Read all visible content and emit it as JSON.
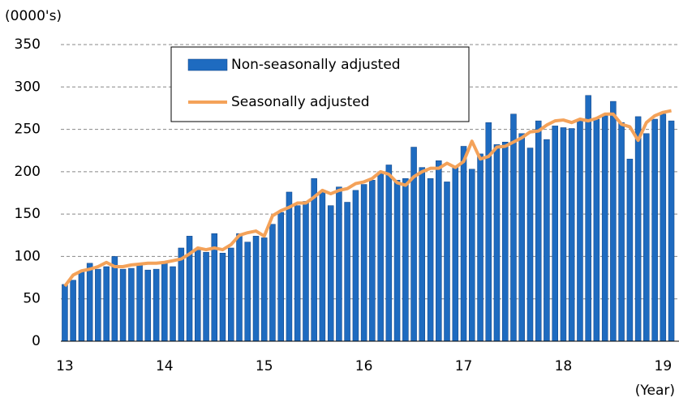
{
  "chart_data": {
    "type": "bar",
    "y_unit_label": "(0000's)",
    "x_unit_label": "(Year)",
    "x": [
      13,
      13.083,
      13.167,
      13.25,
      13.333,
      13.417,
      13.5,
      13.583,
      13.667,
      13.75,
      13.833,
      13.917,
      14,
      14.083,
      14.167,
      14.25,
      14.333,
      14.417,
      14.5,
      14.583,
      14.667,
      14.75,
      14.833,
      14.917,
      15,
      15.083,
      15.167,
      15.25,
      15.333,
      15.417,
      15.5,
      15.583,
      15.667,
      15.75,
      15.833,
      15.917,
      16,
      16.083,
      16.167,
      16.25,
      16.333,
      16.417,
      16.5,
      16.583,
      16.667,
      16.75,
      16.833,
      16.917,
      17,
      17.083,
      17.167,
      17.25,
      17.333,
      17.417,
      17.5,
      17.583,
      17.667,
      17.75,
      17.833,
      17.917,
      18,
      18.083,
      18.167,
      18.25,
      18.333,
      18.417,
      18.5,
      18.583,
      18.667,
      18.75,
      18.833,
      18.917,
      19,
      19.083
    ],
    "series": [
      {
        "name": "Non-seasonally adjusted",
        "type": "bar",
        "color": "#1e6bc0",
        "edge_color": "#0d3f80",
        "values": [
          67,
          72,
          82,
          92,
          85,
          88,
          100,
          85,
          86,
          91,
          84,
          85,
          92,
          88,
          110,
          124,
          108,
          105,
          127,
          104,
          110,
          127,
          117,
          124,
          122,
          138,
          152,
          176,
          160,
          165,
          192,
          176,
          160,
          182,
          164,
          178,
          185,
          190,
          200,
          208,
          190,
          192,
          229,
          205,
          192,
          213,
          188,
          205,
          230,
          203,
          221,
          258,
          232,
          235,
          268,
          245,
          228,
          260,
          238,
          254,
          252,
          251,
          262,
          290,
          262,
          266,
          283,
          258,
          215,
          265,
          245,
          262,
          268,
          260
        ]
      },
      {
        "name": "Seasonally adjusted",
        "type": "line",
        "color": "#f4a259",
        "values": [
          65,
          78,
          83,
          85,
          88,
          93,
          88,
          88,
          90,
          91,
          92,
          92,
          93,
          95,
          97,
          103,
          110,
          108,
          110,
          108,
          114,
          125,
          128,
          130,
          124,
          148,
          154,
          158,
          163,
          163,
          170,
          178,
          174,
          178,
          180,
          186,
          188,
          192,
          200,
          197,
          187,
          184,
          194,
          200,
          204,
          204,
          210,
          205,
          212,
          236,
          215,
          218,
          229,
          230,
          235,
          240,
          247,
          248,
          255,
          260,
          261,
          258,
          262,
          260,
          263,
          268,
          268,
          256,
          253,
          237,
          258,
          266,
          270,
          272
        ]
      }
    ],
    "xlim": [
      12.96,
      19.16
    ],
    "xticks": [
      13,
      14,
      15,
      16,
      17,
      18,
      19
    ],
    "ylim": [
      0,
      350
    ],
    "yticks": [
      0,
      50,
      100,
      150,
      200,
      250,
      300,
      350
    ],
    "grid": true
  }
}
